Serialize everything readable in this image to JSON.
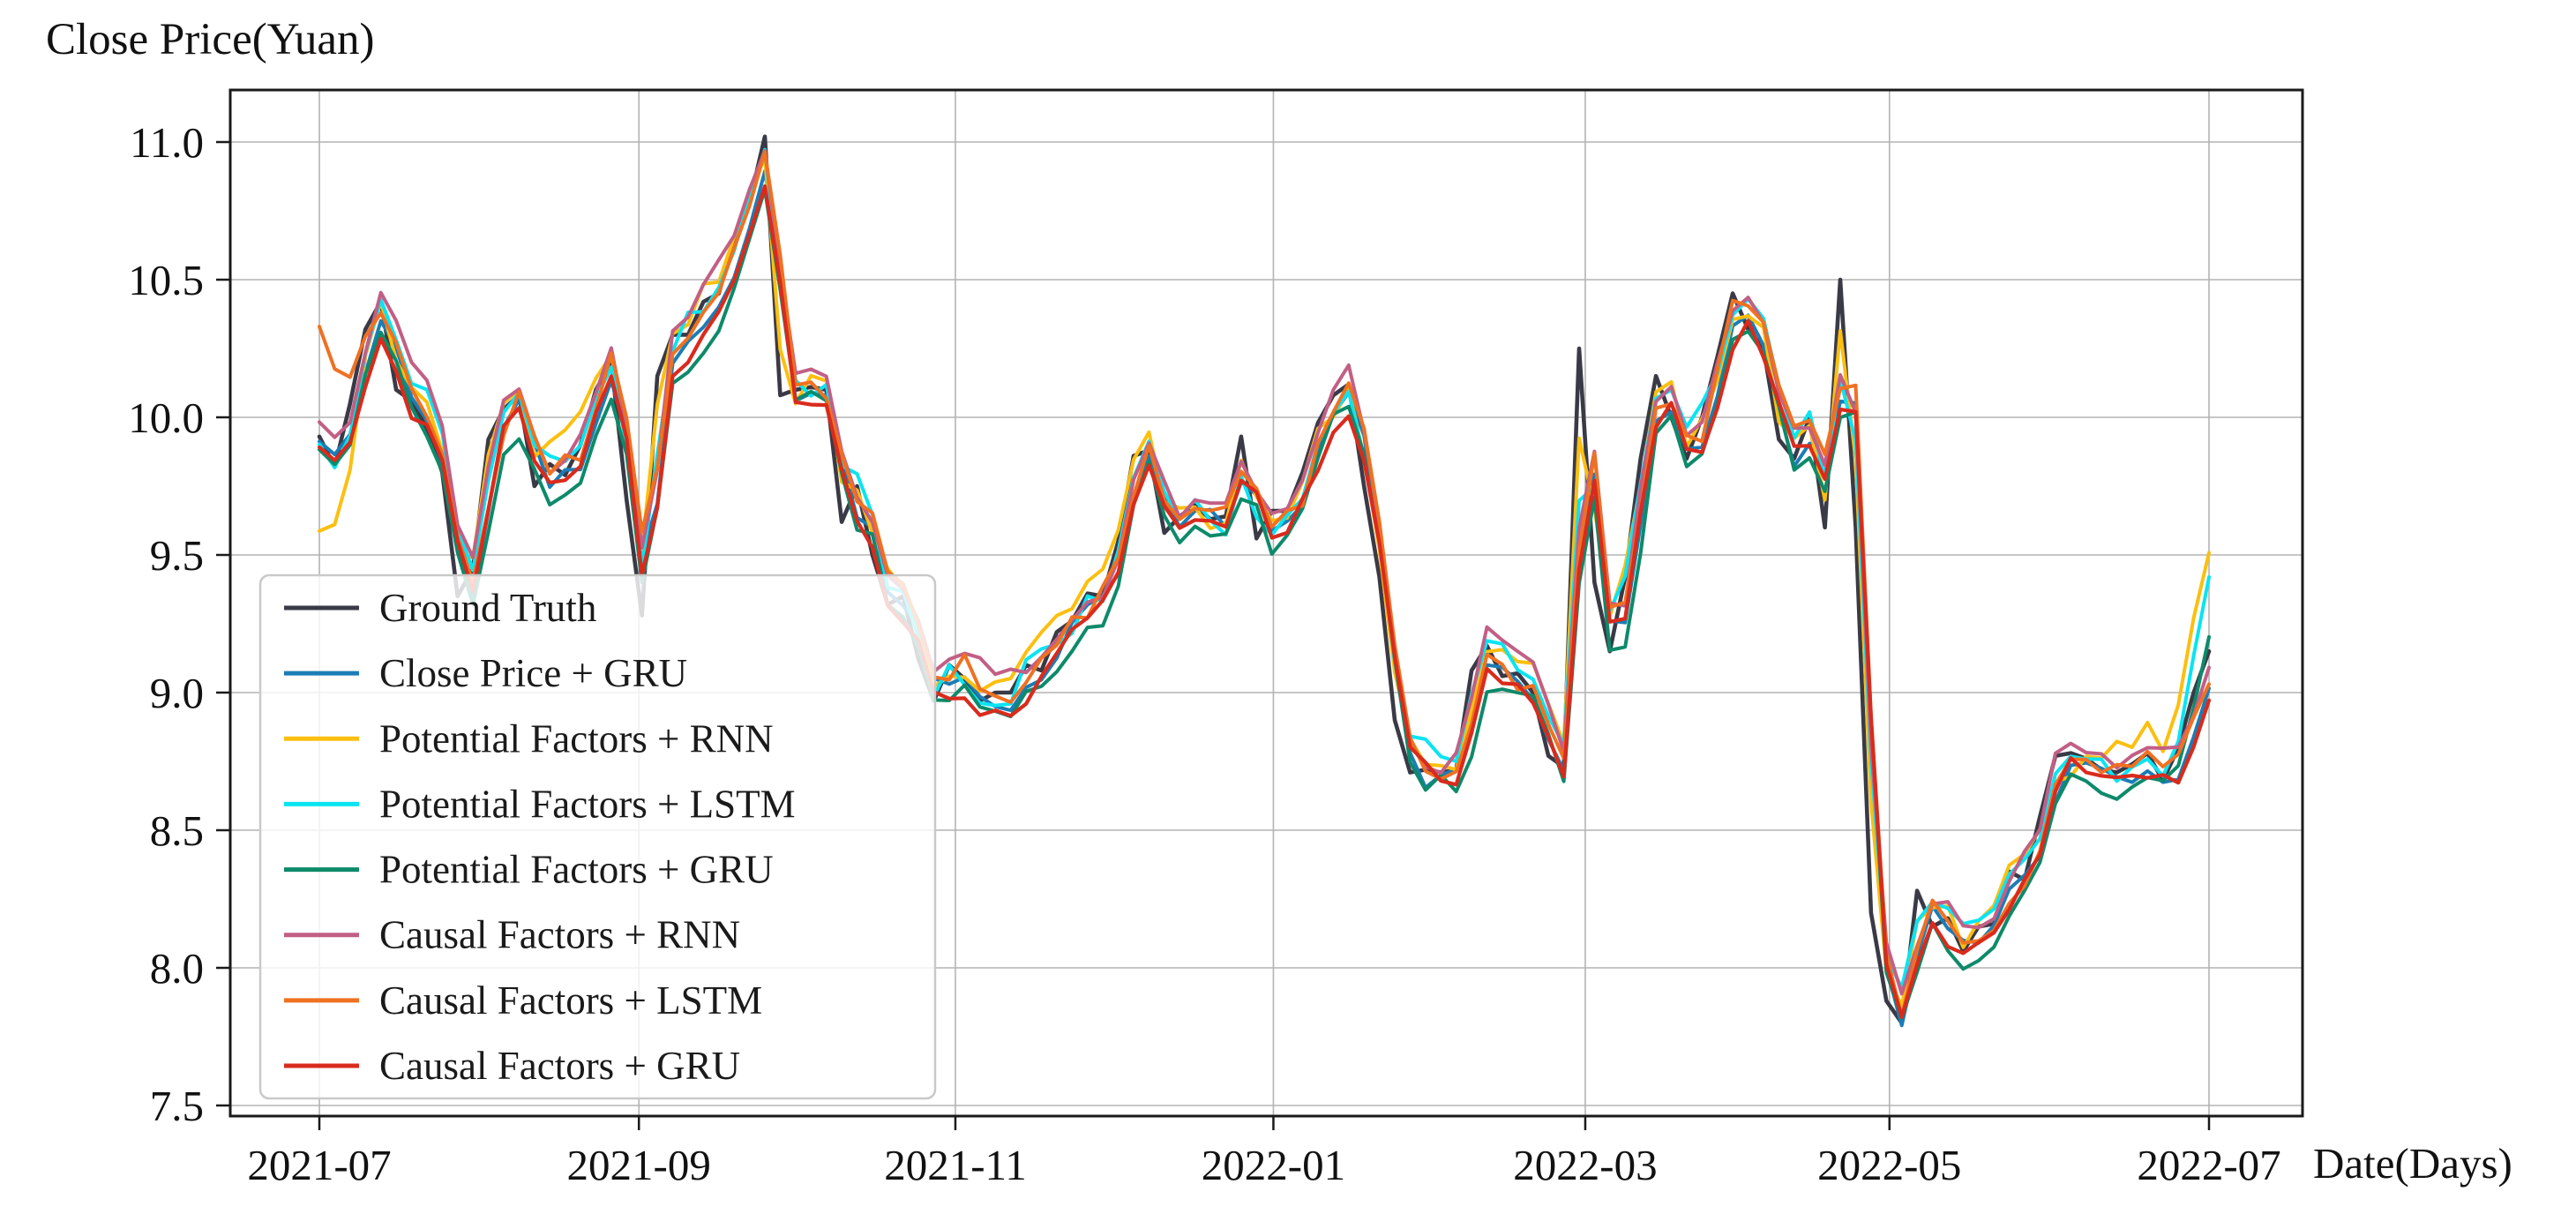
{
  "figure": {
    "title": "Close Price(Yuan)",
    "x_axis_label": "Date(Days)",
    "background": "#ffffff",
    "grid_color": "#b3b3b3",
    "spine_color": "#1a1a1a",
    "text_color": "#111111"
  },
  "chart_data": {
    "type": "line",
    "title": "Close Price(Yuan)",
    "xlabel": "Date(Days)",
    "ylabel": "",
    "x_range_dates": [
      "2021-07",
      "2022-07"
    ],
    "n_points": 124,
    "ylim": [
      7.46,
      11.19
    ],
    "grid": true,
    "legend_position": "lower left",
    "x_ticks": [
      {
        "pos": 0.0,
        "label": "2021-07"
      },
      {
        "pos": 20.8,
        "label": "2021-09"
      },
      {
        "pos": 41.4,
        "label": "2021-11"
      },
      {
        "pos": 62.1,
        "label": "2022-01"
      },
      {
        "pos": 82.4,
        "label": "2022-03"
      },
      {
        "pos": 102.2,
        "label": "2022-05"
      },
      {
        "pos": 123.0,
        "label": "2022-07"
      }
    ],
    "y_ticks": [
      7.5,
      8.0,
      8.5,
      9.0,
      9.5,
      10.0,
      10.5,
      11.0
    ],
    "ground_truth": [
      9.93,
      9.82,
      10.05,
      10.32,
      10.42,
      10.1,
      10.06,
      9.96,
      9.8,
      9.35,
      9.45,
      9.92,
      10.03,
      10.08,
      9.75,
      9.83,
      9.79,
      9.9,
      10.1,
      10.2,
      9.7,
      9.28,
      10.15,
      10.3,
      10.3,
      10.42,
      10.45,
      10.65,
      10.78,
      11.02,
      10.08,
      10.1,
      10.11,
      10.1,
      9.62,
      9.75,
      9.5,
      9.32,
      9.35,
      9.12,
      8.97,
      9.1,
      9.05,
      8.97,
      9.0,
      9.0,
      9.1,
      9.08,
      9.22,
      9.26,
      9.36,
      9.35,
      9.55,
      9.86,
      9.88,
      9.58,
      9.64,
      9.68,
      9.63,
      9.64,
      9.93,
      9.56,
      9.66,
      9.66,
      9.8,
      9.98,
      10.08,
      10.12,
      9.75,
      9.42,
      8.9,
      8.71,
      8.72,
      8.71,
      8.72,
      9.08,
      9.17,
      9.06,
      9.07,
      9.0,
      8.77,
      8.73,
      10.25,
      9.4,
      9.15,
      9.42,
      9.85,
      10.15,
      10.0,
      9.85,
      10.0,
      10.22,
      10.45,
      10.32,
      10.25,
      9.92,
      9.85,
      10.0,
      9.6,
      10.5,
      9.6,
      8.2,
      7.88,
      7.8,
      8.28,
      8.15,
      8.18,
      8.06,
      8.15,
      8.16,
      8.35,
      8.32,
      8.55,
      8.77,
      8.78,
      8.76,
      8.72,
      8.71,
      8.74,
      8.78,
      8.68,
      8.8,
      9.0,
      9.15
    ],
    "series": [
      {
        "name": "Ground Truth",
        "color": "#3a3a47",
        "width": 4.6,
        "derived_from": null,
        "lag_w": 0,
        "bias": 0,
        "noise_amp": 0,
        "seed": 1,
        "start_offset": 0,
        "end_offset": 0
      },
      {
        "name": "Close Price + GRU",
        "color": "#1b7db6",
        "width": 4.0,
        "derived_from": "ground_truth",
        "lag_w": 0.5,
        "bias": -0.02,
        "noise_amp": 0.05,
        "seed": 11,
        "start_offset": 0,
        "end_offset": -0.05
      },
      {
        "name": "Potential Factors + RNN",
        "color": "#fcbf10",
        "width": 4.0,
        "derived_from": "ground_truth",
        "lag_w": 0.25,
        "bias": 0.04,
        "noise_amp": 0.11,
        "seed": 23,
        "start_offset": -0.3,
        "end_offset": 0.38
      },
      {
        "name": "Potential Factors + LSTM",
        "color": "#0ae4f2",
        "width": 4.0,
        "derived_from": "ground_truth",
        "lag_w": 0.35,
        "bias": 0.03,
        "noise_amp": 0.09,
        "seed": 37,
        "start_offset": -0.1,
        "end_offset": 0.28
      },
      {
        "name": "Potential Factors + GRU",
        "color": "#0d8a6a",
        "width": 4.0,
        "derived_from": "ground_truth",
        "lag_w": 0.5,
        "bias": -0.07,
        "noise_amp": 0.07,
        "seed": 41,
        "start_offset": 0,
        "end_offset": 0.16
      },
      {
        "name": "Causal Factors + RNN",
        "color": "#c25f85",
        "width": 4.0,
        "derived_from": "ground_truth",
        "lag_w": 0.45,
        "bias": 0.06,
        "noise_amp": 0.07,
        "seed": 53,
        "start_offset": 0,
        "end_offset": 0
      },
      {
        "name": "Causal Factors + LSTM",
        "color": "#ef7122",
        "width": 4.0,
        "derived_from": "ground_truth",
        "lag_w": 0.5,
        "bias": 0.02,
        "noise_amp": 0.08,
        "seed": 67,
        "start_offset": 0.35,
        "end_offset": -0.04
      },
      {
        "name": "Causal Factors + GRU",
        "color": "#d92b1d",
        "width": 4.2,
        "derived_from": "ground_truth",
        "lag_w": 0.5,
        "bias": -0.04,
        "noise_amp": 0.06,
        "seed": 79,
        "start_offset": 0,
        "end_offset": -0.08
      }
    ]
  },
  "layout_values": {
    "tick_font_px": 49,
    "legend_font_px": 45
  }
}
